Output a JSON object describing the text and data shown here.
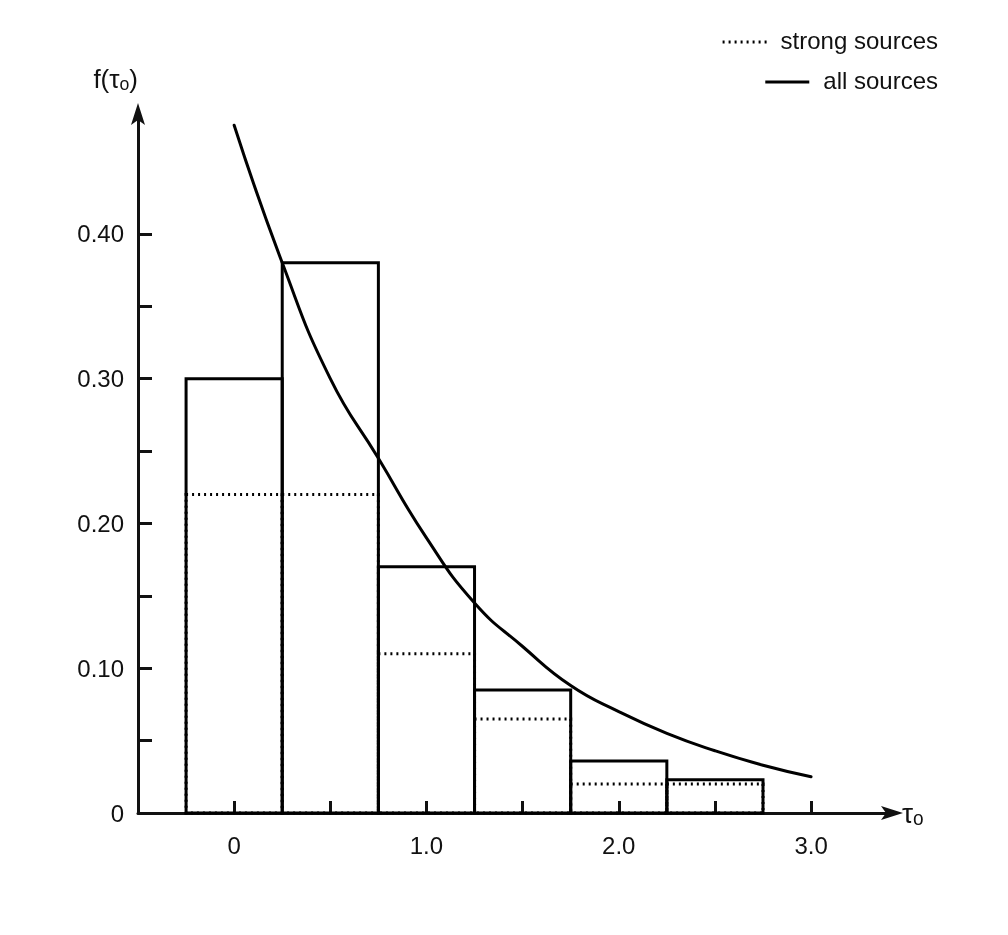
{
  "chart_data": {
    "type": "histogram",
    "xlabel": "τₒ",
    "ylabel": "f(τₒ)",
    "bins": [
      -0.25,
      0.25,
      0.75,
      1.25,
      1.75,
      2.25,
      2.75
    ],
    "series": [
      {
        "name": "strong sources",
        "color": "#000000",
        "line_style": "dotted",
        "values": [
          0.22,
          0.22,
          0.11,
          0.065,
          0.02,
          0.02
        ]
      },
      {
        "name": "all sources",
        "color": "#000000",
        "line_style": "solid",
        "values": [
          0.3,
          0.38,
          0.17,
          0.085,
          0.036,
          0.023
        ]
      },
      {
        "type": "line",
        "color": "#000000",
        "line_style": "solid",
        "x": [
          0,
          0.25,
          0.5,
          0.75,
          1.0,
          1.25,
          1.5,
          1.75,
          2.0,
          2.25,
          2.5,
          2.75,
          3.0
        ],
        "values": [
          0.475,
          0.38,
          0.3,
          0.245,
          0.19,
          0.145,
          0.115,
          0.088,
          0.07,
          0.055,
          0.043,
          0.033,
          0.025
        ]
      }
    ],
    "xlim": [
      -0.5,
      3.4
    ],
    "ylim": [
      0,
      0.48
    ],
    "xticks": [
      {
        "value": 0,
        "label": "0"
      },
      {
        "value": 0.5,
        "label": null
      },
      {
        "value": 1,
        "label": "1.0"
      },
      {
        "value": 1.5,
        "label": null
      },
      {
        "value": 2,
        "label": "2.0"
      },
      {
        "value": 2.5,
        "label": null
      },
      {
        "value": 3,
        "label": "3.0"
      }
    ],
    "yticks": [
      {
        "value": 0,
        "label": "0"
      },
      {
        "value": 0.05,
        "label": null
      },
      {
        "value": 0.1,
        "label": "0.10"
      },
      {
        "value": 0.15,
        "label": null
      },
      {
        "value": 0.2,
        "label": "0.20"
      },
      {
        "value": 0.25,
        "label": null
      },
      {
        "value": 0.3,
        "label": "0.30"
      },
      {
        "value": 0.35,
        "label": null
      },
      {
        "value": 0.4,
        "label": "0.40"
      }
    ],
    "grid": false,
    "legend": "top right",
    "marker": "none"
  }
}
